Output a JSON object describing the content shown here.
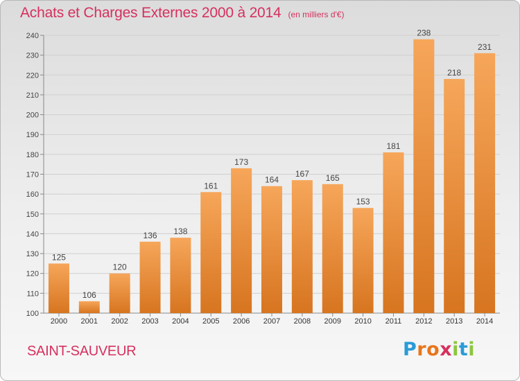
{
  "title": "Achats et Charges Externes 2000 à 2014",
  "unit_note": "(en milliers d'€)",
  "commune": "SAINT-SAUVEUR",
  "logo": {
    "letters": [
      "P",
      "r",
      "o",
      "x",
      "i",
      "t",
      "i"
    ],
    "colors": [
      "#2a9bd7",
      "#e8761d",
      "#e8761d",
      "#d6305e",
      "#8cc63f",
      "#2a9bd7",
      "#8cc63f"
    ]
  },
  "colors": {
    "bar_light": "#f6a65a",
    "bar_dark": "#d77520",
    "title": "#d6305e",
    "grid": "#cfcfcf"
  },
  "chart_data": {
    "type": "bar",
    "title": "Achats et Charges Externes 2000 à 2014",
    "subtitle": "(en milliers d'€)",
    "categories": [
      "2000",
      "2001",
      "2002",
      "2003",
      "2004",
      "2005",
      "2006",
      "2007",
      "2008",
      "2009",
      "2010",
      "2011",
      "2012",
      "2013",
      "2014"
    ],
    "values": [
      125,
      106,
      120,
      136,
      138,
      161,
      173,
      164,
      167,
      165,
      153,
      181,
      238,
      218,
      231
    ],
    "ylim": [
      100,
      240
    ],
    "yticks": [
      100,
      110,
      120,
      130,
      140,
      150,
      160,
      170,
      180,
      190,
      200,
      210,
      220,
      230,
      240
    ],
    "grid": true,
    "data_labels": true
  }
}
